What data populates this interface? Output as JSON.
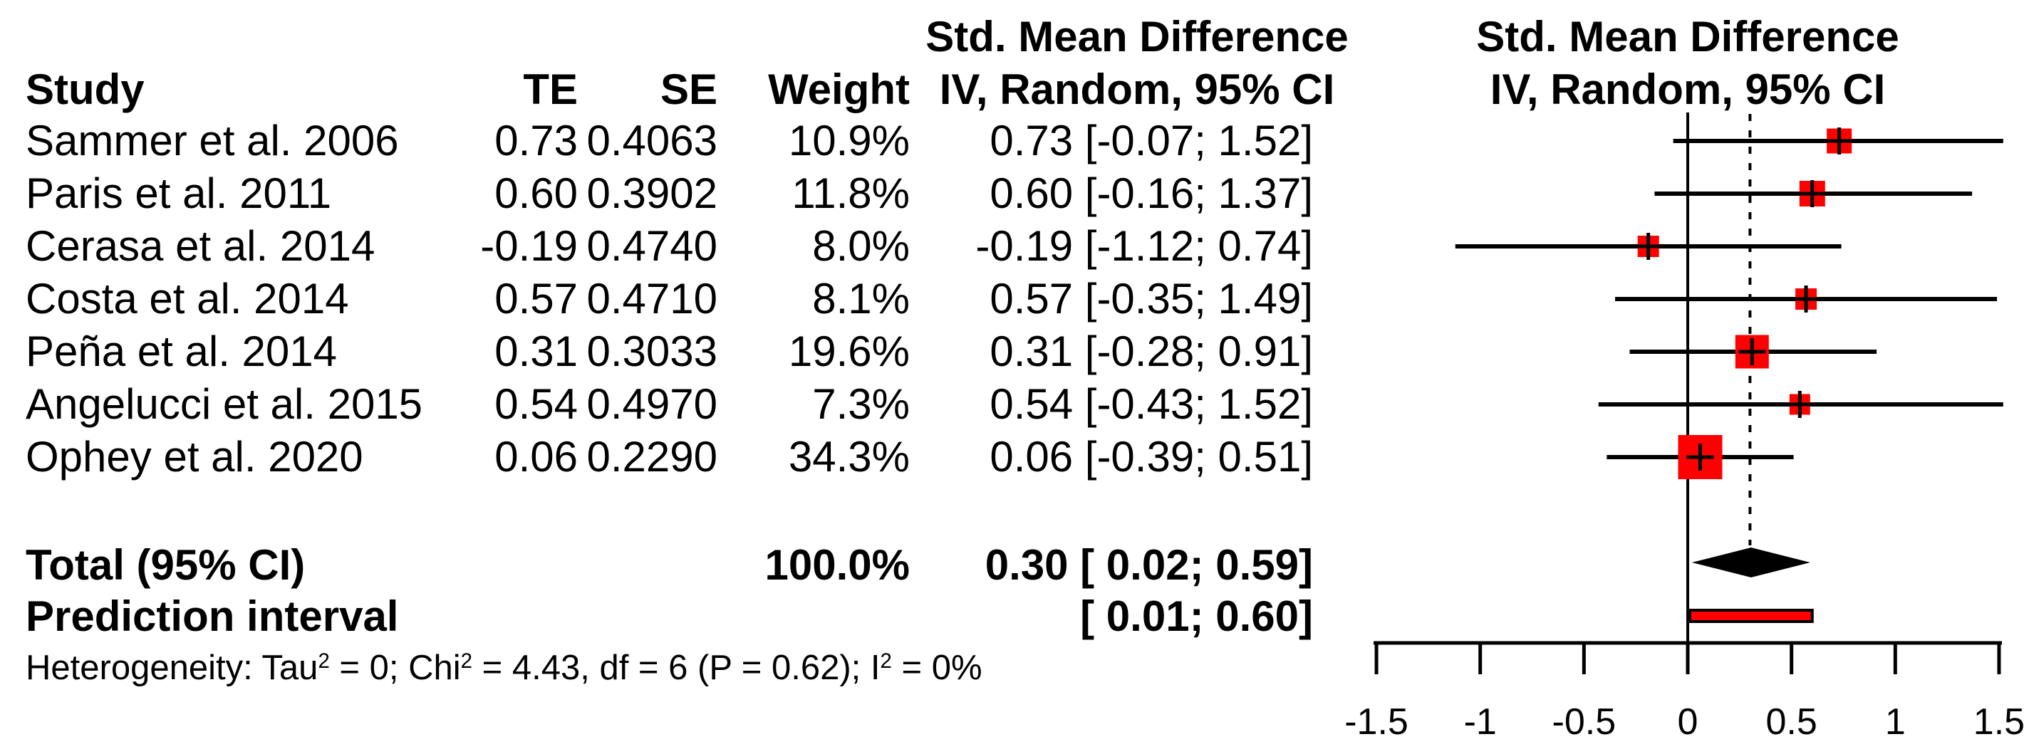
{
  "table": {
    "headers": {
      "study": "Study",
      "te": "TE",
      "se": "SE",
      "weight": "Weight",
      "smd_line1": "Std. Mean Difference",
      "smd_line2": "IV, Random, 95% CI"
    },
    "studies": [
      {
        "study": "Sammer et al. 2006",
        "te": "0.73",
        "se": "0.4063",
        "weight": "10.9%",
        "ci": "0.73 [-0.07; 1.52]"
      },
      {
        "study": "Paris et al. 2011",
        "te": "0.60",
        "se": "0.3902",
        "weight": "11.8%",
        "ci": "0.60 [-0.16; 1.37]"
      },
      {
        "study": "Cerasa et al. 2014",
        "te": "-0.19",
        "se": "0.4740",
        "weight": "8.0%",
        "ci": "-0.19 [-1.12; 0.74]"
      },
      {
        "study": "Costa et al. 2014",
        "te": "0.57",
        "se": "0.4710",
        "weight": "8.1%",
        "ci": "0.57 [-0.35; 1.49]"
      },
      {
        "study": "Peña et al. 2014",
        "te": "0.31",
        "se": "0.3033",
        "weight": "19.6%",
        "ci": "0.31 [-0.28; 0.91]"
      },
      {
        "study": "Angelucci et al. 2015",
        "te": "0.54",
        "se": "0.4970",
        "weight": "7.3%",
        "ci": "0.54 [-0.43; 1.52]"
      },
      {
        "study": "Ophey et al. 2020",
        "te": "0.06",
        "se": "0.2290",
        "weight": "34.3%",
        "ci": "0.06 [-0.39; 0.51]"
      }
    ],
    "total": {
      "label": "Total (95% CI)",
      "weight": "100.0%",
      "ci": "0.30 [ 0.02; 0.59]"
    },
    "prediction": {
      "label": "Prediction interval",
      "ci": "[ 0.01; 0.60]"
    },
    "heterogeneity": [
      "Heterogeneity: Tau",
      "2",
      " = 0; Chi",
      "2",
      " = 4.43, df = 6 (P = 0.62); I",
      "2",
      " = 0%"
    ]
  },
  "plot": {
    "title_line1": "Std. Mean Difference",
    "title_line2": "IV, Random, 95% CI",
    "axis_tick_labels": [
      "-1.5",
      "-1",
      "-0.5",
      "0",
      "0.5",
      "1",
      "1.5"
    ]
  },
  "chart_data": {
    "type": "forest",
    "effect_measure": "Std. Mean Difference",
    "model": "IV, Random, 95% CI",
    "studies": [
      {
        "name": "Sammer et al. 2006",
        "te": 0.73,
        "se": 0.4063,
        "weight_pct": 10.9,
        "ci": [
          -0.07,
          1.52
        ]
      },
      {
        "name": "Paris et al. 2011",
        "te": 0.6,
        "se": 0.3902,
        "weight_pct": 11.8,
        "ci": [
          -0.16,
          1.37
        ]
      },
      {
        "name": "Cerasa et al. 2014",
        "te": -0.19,
        "se": 0.474,
        "weight_pct": 8.0,
        "ci": [
          -1.12,
          0.74
        ]
      },
      {
        "name": "Costa et al. 2014",
        "te": 0.57,
        "se": 0.471,
        "weight_pct": 8.1,
        "ci": [
          -0.35,
          1.49
        ]
      },
      {
        "name": "Peña et al. 2014",
        "te": 0.31,
        "se": 0.3033,
        "weight_pct": 19.6,
        "ci": [
          -0.28,
          0.91
        ]
      },
      {
        "name": "Angelucci et al. 2015",
        "te": 0.54,
        "se": 0.497,
        "weight_pct": 7.3,
        "ci": [
          -0.43,
          1.52
        ]
      },
      {
        "name": "Ophey et al. 2020",
        "te": 0.06,
        "se": 0.229,
        "weight_pct": 34.3,
        "ci": [
          -0.39,
          0.51
        ]
      }
    ],
    "total": {
      "estimate": 0.3,
      "ci": [
        0.02,
        0.59
      ],
      "weight_pct": 100.0
    },
    "prediction_interval": [
      0.01,
      0.6
    ],
    "heterogeneity": {
      "tau2": 0,
      "chi2": 4.43,
      "df": 6,
      "p": 0.62,
      "i2_pct": 0
    },
    "xlim": [
      -1.5,
      1.5
    ],
    "x_ticks": [
      -1.5,
      -1,
      -0.5,
      0,
      0.5,
      1,
      1.5
    ],
    "reference_line": 0,
    "pooled_line": 0.3,
    "grid": false,
    "legend": false
  },
  "colors": {
    "square": "#ff0000",
    "ci_line": "#000000",
    "diamond": "#000000",
    "prediction_fill": "#ff0000",
    "prediction_border": "#000000",
    "text": "#000000",
    "background": "#ffffff"
  }
}
